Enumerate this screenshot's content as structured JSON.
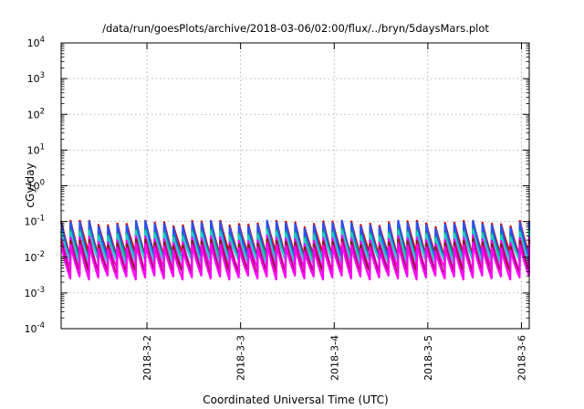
{
  "chart_data": {
    "type": "line",
    "title": "/data/run/goesPlots/archive/2018-03-06/02:00/flux/../bryn/5daysMars.plot",
    "xlabel": "Coordinated Universal Time (UTC)",
    "ylabel": "cGy/day",
    "y_scale": "log",
    "ylim": [
      0.0001,
      10000
    ],
    "y_ticks": [
      {
        "value": 0.0001,
        "base": "10",
        "exp": "-4"
      },
      {
        "value": 0.001,
        "base": "10",
        "exp": "-3"
      },
      {
        "value": 0.01,
        "base": "10",
        "exp": "-2"
      },
      {
        "value": 0.1,
        "base": "10",
        "exp": "-1"
      },
      {
        "value": 1,
        "base": "10",
        "exp": "0"
      },
      {
        "value": 10,
        "base": "10",
        "exp": "1"
      },
      {
        "value": 100,
        "base": "10",
        "exp": "2"
      },
      {
        "value": 1000,
        "base": "10",
        "exp": "3"
      },
      {
        "value": 10000,
        "base": "10",
        "exp": "4"
      }
    ],
    "xlim": [
      "2018-03-01 02:00",
      "2018-03-06 02:00"
    ],
    "x_ticks": [
      {
        "value": "2018-03-02 00:00",
        "label": "2018-3-2"
      },
      {
        "value": "2018-03-03 00:00",
        "label": "2018-3-3"
      },
      {
        "value": "2018-03-04 00:00",
        "label": "2018-3-4"
      },
      {
        "value": "2018-03-05 00:00",
        "label": "2018-3-5"
      },
      {
        "value": "2018-03-06 00:00",
        "label": "2018-3-6"
      }
    ],
    "grid": true,
    "sawtooth_cycles": 50,
    "series": [
      {
        "color": "#dd0000",
        "peak": 0.095,
        "trough": 0.012
      },
      {
        "color": "#2255ff",
        "peak": 0.085,
        "trough": 0.009
      },
      {
        "color": "#00aa66",
        "peak": 0.05,
        "trough": 0.0085
      },
      {
        "color": "#22cccc",
        "peak": 0.045,
        "trough": 0.0075
      },
      {
        "color": "#ff00ff",
        "peak": 0.032,
        "trough": 0.0045
      },
      {
        "color": "#8b1a1a",
        "peak": 0.026,
        "trough": 0.0035
      },
      {
        "color": "#ff00ff",
        "peak": 0.02,
        "trough": 0.0028
      }
    ]
  }
}
